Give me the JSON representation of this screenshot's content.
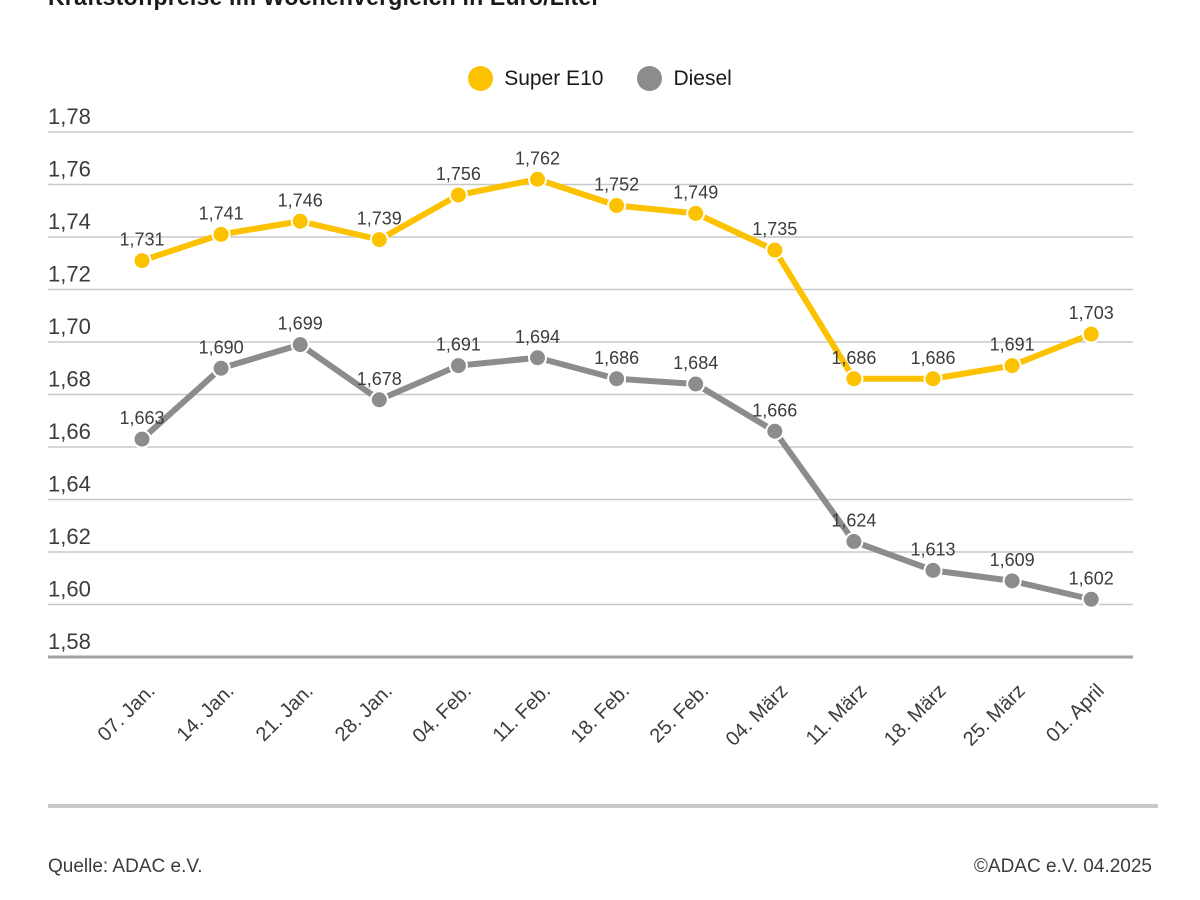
{
  "title": "Kraftstoffpreise im Wochenvergleich in Euro/Liter",
  "footer": {
    "source": "Quelle: ADAC e.V.",
    "copyright": "©ADAC e.V. 04.2025"
  },
  "colors": {
    "super_e10": "#fcc200",
    "diesel": "#8c8c8c",
    "gridline": "#c8c8c8",
    "axis_line": "#a3a3a3",
    "label_text": "#3c3c3c",
    "title_text": "#1a1a1a"
  },
  "chart_data": {
    "type": "line",
    "title": "Kraftstoffpreise im Wochenvergleich in Euro/Liter",
    "xlabel": "",
    "ylabel": "Euro/Liter",
    "grid": "horizontal",
    "legend_position": "top-center",
    "decimal_separator": ",",
    "categories": [
      "07. Jan.",
      "14. Jan.",
      "21. Jan.",
      "28. Jan.",
      "04. Feb.",
      "11. Feb.",
      "18. Feb.",
      "25. Feb.",
      "04. März",
      "11. März",
      "18. März",
      "25. März",
      "01. April"
    ],
    "series": [
      {
        "name": "Super E10",
        "color": "#fcc200",
        "values": [
          1.731,
          1.741,
          1.746,
          1.739,
          1.756,
          1.762,
          1.752,
          1.749,
          1.735,
          1.686,
          1.686,
          1.691,
          1.703
        ]
      },
      {
        "name": "Diesel",
        "color": "#8c8c8c",
        "values": [
          1.663,
          1.69,
          1.699,
          1.678,
          1.691,
          1.694,
          1.686,
          1.684,
          1.666,
          1.624,
          1.613,
          1.609,
          1.602
        ]
      }
    ],
    "y_ticks": [
      1.78,
      1.76,
      1.74,
      1.72,
      1.7,
      1.68,
      1.66,
      1.64,
      1.62,
      1.6,
      1.58
    ],
    "ylim": [
      1.58,
      1.78
    ]
  }
}
